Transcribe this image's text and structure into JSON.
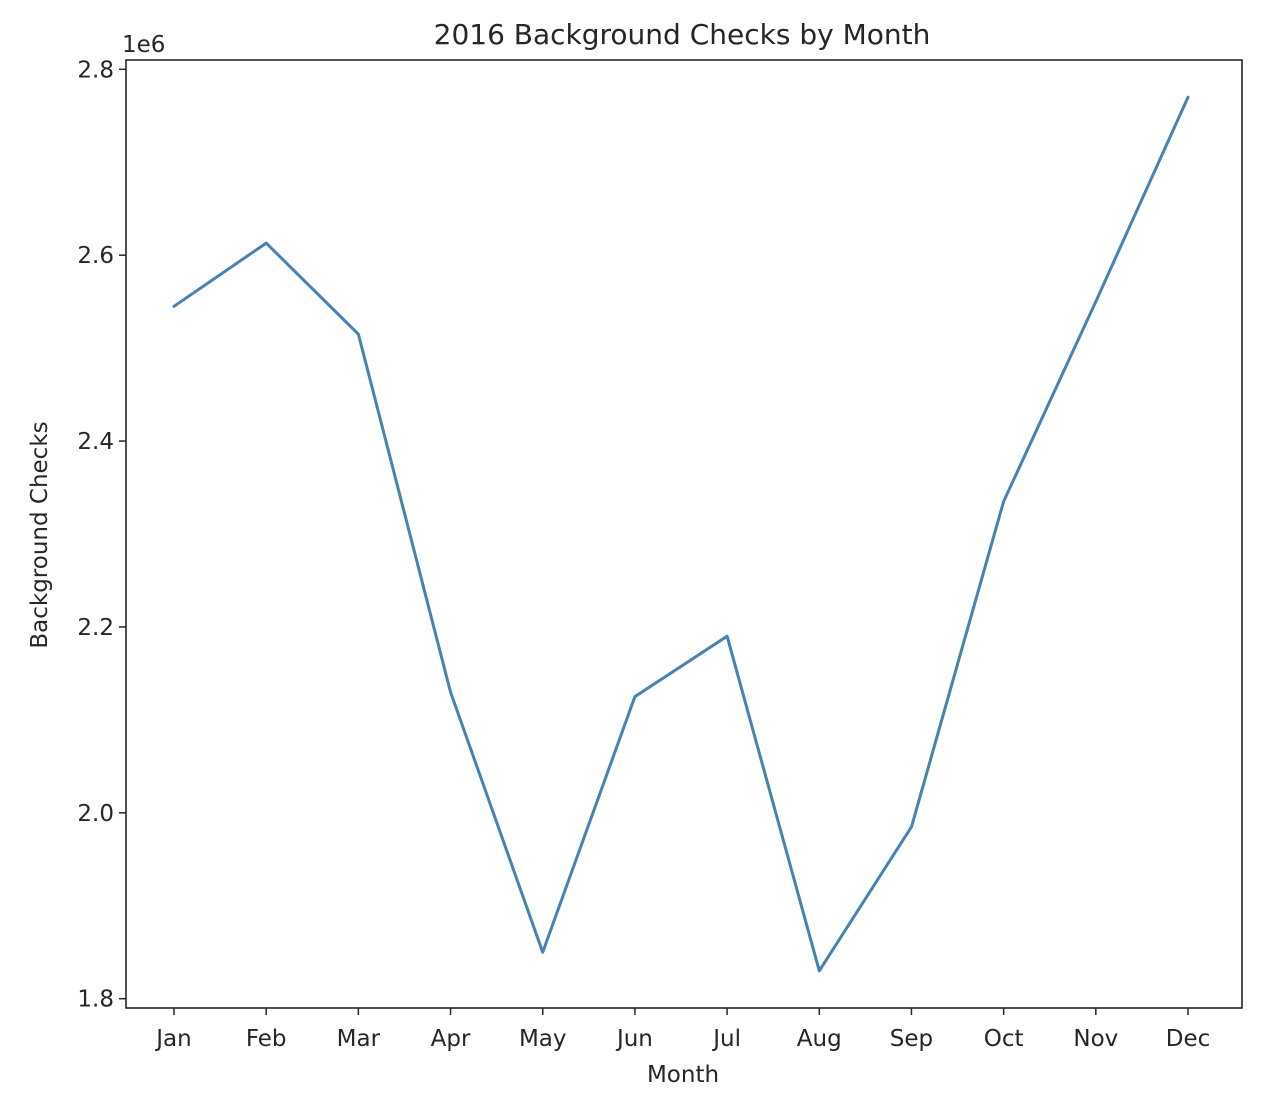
{
  "chart_data": {
    "type": "line",
    "title": "2016 Background Checks by Month",
    "xlabel": "Month",
    "ylabel": "Background Checks",
    "y_offset_label": "1e6",
    "categories": [
      "Jan",
      "Feb",
      "Mar",
      "Apr",
      "May",
      "Jun",
      "Jul",
      "Aug",
      "Sep",
      "Oct",
      "Nov",
      "Dec"
    ],
    "series": [
      {
        "color": "#4682b4",
        "values": [
          2545000,
          2613000,
          2515000,
          2130000,
          1850000,
          2125000,
          2190000,
          1830000,
          1985000,
          2335000,
          2550000,
          2770000
        ]
      }
    ],
    "yticks": [
      1800000,
      2000000,
      2200000,
      2400000,
      2600000,
      2800000
    ],
    "ytick_labels": [
      "1.8",
      "2.0",
      "2.2",
      "2.4",
      "2.6",
      "2.8"
    ],
    "ylim": [
      1790000,
      2810000
    ],
    "grid": false,
    "legend": "none"
  }
}
